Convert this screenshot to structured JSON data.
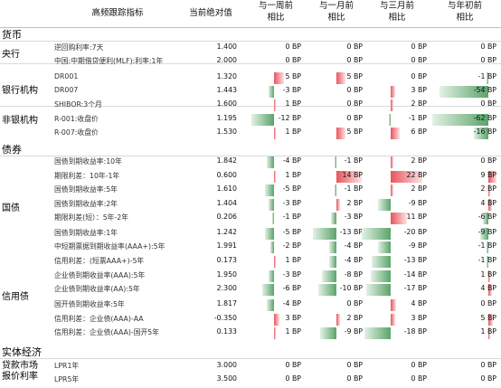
{
  "header": {
    "indicator": "高频跟踪指标",
    "current_value": "当前绝对值",
    "vs_week_line1": "与一周前",
    "vs_week_line2": "相比",
    "vs_month_line1": "与一月前",
    "vs_month_line2": "相比",
    "vs_quarter_line1": "与三月前",
    "vs_quarter_line2": "相比",
    "vs_ytd_line1": "与年初前",
    "vs_ytd_line2": "相比"
  },
  "unit": "BP",
  "sections": [
    {
      "label": "货币",
      "top": 30
    },
    {
      "label": "债券",
      "top": 157
    },
    {
      "label": "实体经济",
      "top": 381
    }
  ],
  "groups": [
    {
      "id": "central-bank",
      "label": "央行"
    },
    {
      "id": "bank",
      "label": "银行机构"
    },
    {
      "id": "nonbank",
      "label": "非银机构"
    },
    {
      "id": "govbond",
      "label": "国债"
    },
    {
      "id": "credit",
      "label": "信用债"
    },
    {
      "id": "loan1",
      "label": "贷款市场"
    },
    {
      "id": "loan2",
      "label": "报价利率"
    }
  ],
  "rows": [
    {
      "label": "逆回购利率:7天",
      "value": "1.400",
      "w": 0,
      "m": 0,
      "q": 0,
      "y": 0
    },
    {
      "label": "中国:中期借贷便利(MLF):利率:1年",
      "value": "2.000",
      "w": 0,
      "m": 0,
      "q": 0,
      "y": 0
    },
    {
      "label": "DR001",
      "value": "1.320",
      "w": 5,
      "m": 5,
      "q": 0,
      "y": -1
    },
    {
      "label": "DR007",
      "value": "1.443",
      "w": -3,
      "m": 0,
      "q": 3,
      "y": -54
    },
    {
      "label": "SHIBOR:3个月",
      "value": "1.600",
      "w": 1,
      "m": 0,
      "q": 2,
      "y": 0
    },
    {
      "label": "R-001:收盘价",
      "value": "1.195",
      "w": -12,
      "m": 0,
      "q": -1,
      "y": -62
    },
    {
      "label": "R-007:收盘价",
      "value": "1.530",
      "w": 1,
      "m": 5,
      "q": 6,
      "y": -16
    },
    {
      "label": "国债到期收益率:10年",
      "value": "1.842",
      "w": -4,
      "m": -1,
      "q": 2,
      "y": 0
    },
    {
      "label": "期限利差：10年-1年",
      "value": "0.600",
      "w": 1,
      "m": 14,
      "q": 22,
      "y": 9
    },
    {
      "label": "国债到期收益率:5年",
      "value": "1.610",
      "w": -5,
      "m": -1,
      "q": 2,
      "y": 2
    },
    {
      "label": "国债到期收益率:2年",
      "value": "1.404",
      "w": -3,
      "m": 2,
      "q": -9,
      "y": 4
    },
    {
      "label": "期限利差(短）：5年-2年",
      "value": "0.206",
      "w": -1,
      "m": -3,
      "q": 11,
      "y": -6
    },
    {
      "label": "国债到期收益率:1年",
      "value": "1.242",
      "w": -5,
      "m": -13,
      "q": -20,
      "y": -9
    },
    {
      "label": "中短期票据到期收益率(AAA+):5年",
      "value": "1.991",
      "w": -2,
      "m": -4,
      "q": -9,
      "y": -1
    },
    {
      "label": "信用利差：(短票AAA+)-5年",
      "value": "0.173",
      "w": 1,
      "m": -4,
      "q": -13,
      "y": -1
    },
    {
      "label": "企业债到期收益率(AAA):5年",
      "value": "1.950",
      "w": -3,
      "m": -8,
      "q": -14,
      "y": 1
    },
    {
      "label": "企业债到期收益率(AA):5年",
      "value": "2.300",
      "w": -6,
      "m": -10,
      "q": -17,
      "y": 4
    },
    {
      "label": "国开债到期收益率:5年",
      "value": "1.817",
      "w": -4,
      "m": 0,
      "q": 4,
      "y": 0
    },
    {
      "label": "信用利差：企业债(AAA)-AA",
      "value": "-0.350",
      "w": 3,
      "m": 2,
      "q": 3,
      "y": 5
    },
    {
      "label": "信用利差：企业债(AAA)-国开5年",
      "value": "0.133",
      "w": 1,
      "m": -9,
      "q": -18,
      "y": 1
    },
    {
      "label": "LPR1年",
      "value": "3.000",
      "w": 0,
      "m": 0,
      "q": 0,
      "y": 0
    },
    {
      "label": "LPR5年",
      "value": "3.500",
      "w": 0,
      "m": 0,
      "q": 0,
      "y": 0
    }
  ]
}
